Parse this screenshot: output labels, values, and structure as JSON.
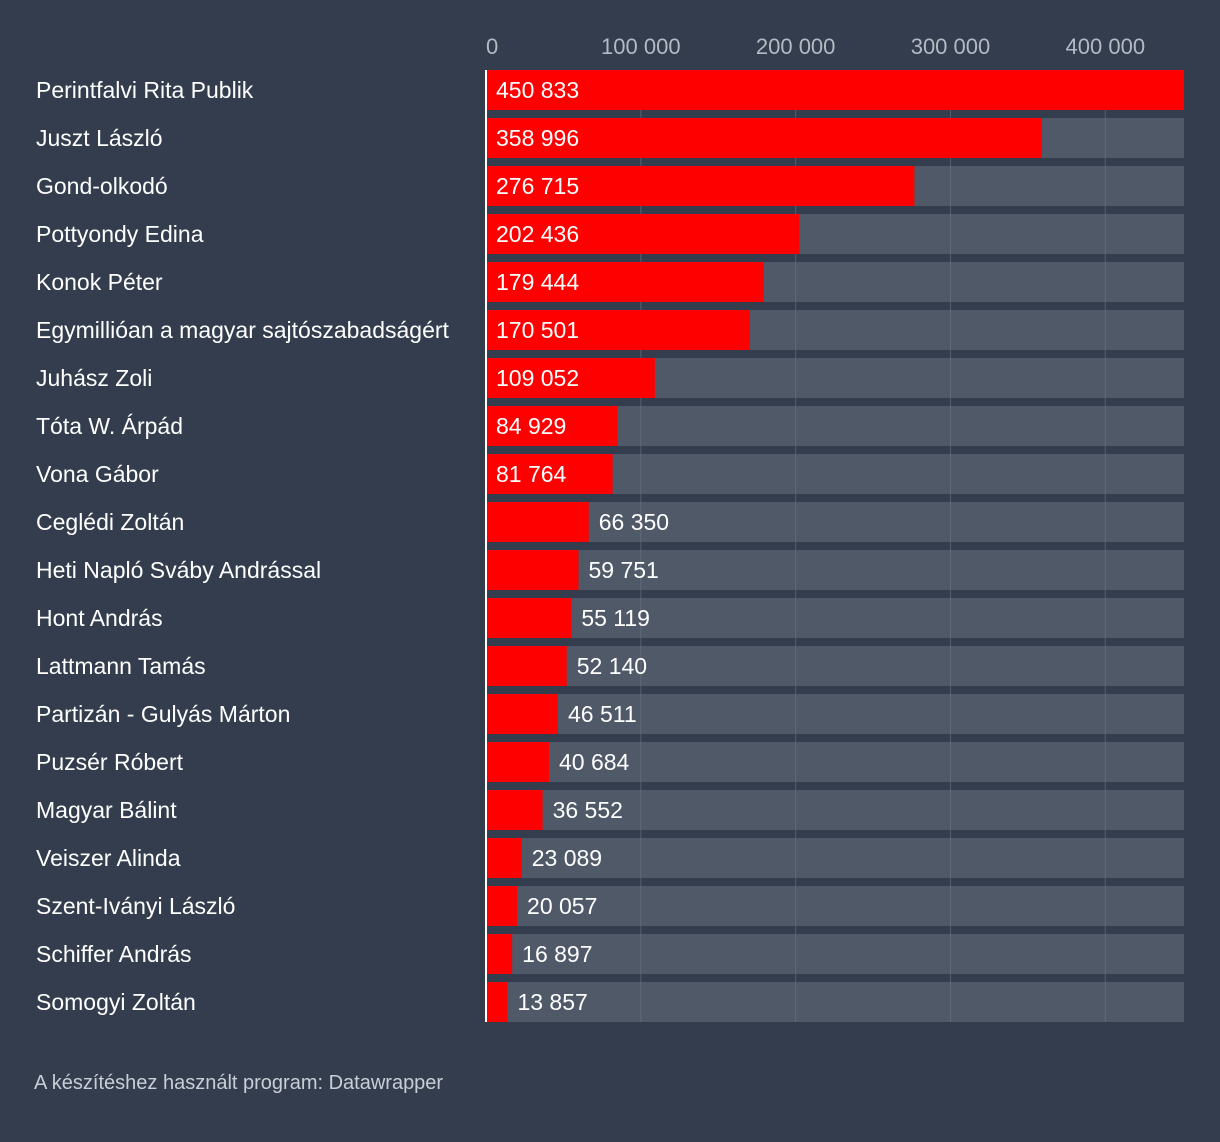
{
  "chart_data": {
    "type": "bar",
    "orientation": "horizontal",
    "categories": [
      "Perintfalvi Rita Publik",
      "Juszt László",
      "Gond-olkodó",
      "Pottyondy Edina",
      "Konok Péter",
      "Egymillióan a magyar sajtószabadságért",
      "Juhász Zoli",
      "Tóta W. Árpád",
      "Vona Gábor",
      "Ceglédi Zoltán",
      "Heti Napló Sváby Andrással",
      "Hont András",
      "Lattmann Tamás",
      "Partizán - Gulyás Márton",
      "Puzsér Róbert",
      "Magyar Bálint",
      "Veiszer Alinda",
      "Szent-Iványi László",
      "Schiffer András",
      "Somogyi Zoltán"
    ],
    "values": [
      450833,
      358996,
      276715,
      202436,
      179444,
      170501,
      109052,
      84929,
      81764,
      66350,
      59751,
      55119,
      52140,
      46511,
      40684,
      36552,
      23089,
      20057,
      16897,
      13857
    ],
    "value_labels": [
      "450 833",
      "358 996",
      "276 715",
      "202 436",
      "179 444",
      "170 501",
      "109 052",
      "84 929",
      "81 764",
      "66 350",
      "59 751",
      "55 119",
      "52 140",
      "46 511",
      "40 684",
      "36 552",
      "23 089",
      "20 057",
      "16 897",
      "13 857"
    ],
    "xlim": [
      0,
      450833
    ],
    "xticks": [
      0,
      100000,
      200000,
      300000,
      400000
    ],
    "xtick_labels": [
      "0",
      "100 000",
      "200 000",
      "300 000",
      "400 000"
    ],
    "grid": true,
    "colors": {
      "bar": "#ff0000",
      "track": "#4f5968",
      "background": "#333d4d",
      "gridline": "#6b7482"
    }
  },
  "footer": {
    "credit": "A készítéshez használt program: Datawrapper"
  }
}
